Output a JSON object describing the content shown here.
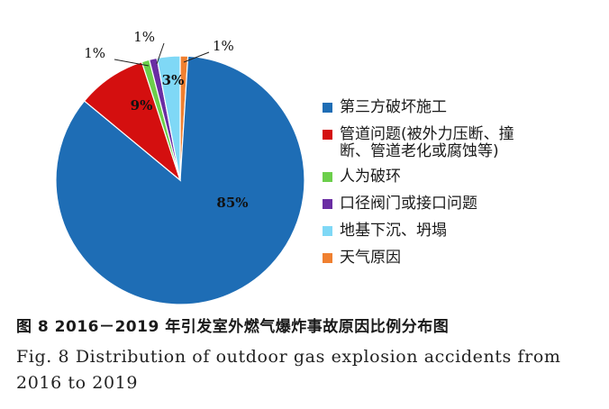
{
  "chart_data": {
    "type": "pie",
    "title": "",
    "slices": [
      {
        "label": "第三方破坏施工",
        "value": 85,
        "value_label": "85%",
        "color": "#1e6db5"
      },
      {
        "label": "管道问题(被外力压断、撞\n断、管道老化或腐蚀等)",
        "value": 9,
        "value_label": "9%",
        "color": "#d40f0f"
      },
      {
        "label": "人为破环",
        "value": 1,
        "value_label": "1%",
        "color": "#6ccf4b"
      },
      {
        "label": "口径阀门或接口问题",
        "value": 1,
        "value_label": "1%",
        "color": "#6a2da3"
      },
      {
        "label": "地基下沉、坍塌",
        "value": 3,
        "value_label": "3%",
        "color": "#7fd8f6"
      },
      {
        "label": "天气原因",
        "value": 1,
        "value_label": "1%",
        "color": "#f08030"
      }
    ],
    "legend_position": "right"
  },
  "caption": {
    "cn": "图 8   2016－2019 年引发室外燃气爆炸事故原因比例分布图",
    "en": "Fig. 8   Distribution of outdoor gas explosion accidents from 2016 to 2019"
  }
}
